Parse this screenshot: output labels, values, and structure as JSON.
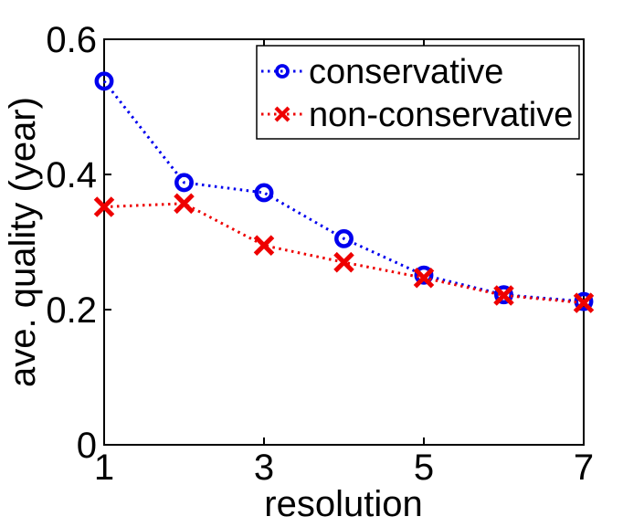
{
  "chart_data": {
    "type": "line",
    "title": "",
    "xlabel": "resolution",
    "ylabel": "ave. quality (year)",
    "xlim": [
      1,
      7
    ],
    "ylim": [
      0,
      0.6
    ],
    "grid": false,
    "background_color": "#ffffff",
    "axis_color": "#000000",
    "xticks": {
      "values": [
        1,
        3,
        5,
        7
      ],
      "labels": [
        "1",
        "3",
        "5",
        "7"
      ]
    },
    "yticks": {
      "values": [
        0,
        0.2,
        0.4,
        0.6
      ],
      "labels": [
        "0",
        "0.2",
        "0.4",
        "0.6"
      ]
    },
    "x": [
      1,
      2,
      3,
      4,
      5,
      6,
      7
    ],
    "series": [
      {
        "name": "conservative",
        "color": "#0000EE",
        "marker": "circle",
        "line_style": "dotted",
        "values": [
          0.538,
          0.388,
          0.373,
          0.305,
          0.251,
          0.222,
          0.212
        ]
      },
      {
        "name": "non-conservative",
        "color": "#EE0000",
        "marker": "x",
        "line_style": "dotted",
        "values": [
          0.352,
          0.357,
          0.295,
          0.27,
          0.247,
          0.221,
          0.21
        ]
      }
    ],
    "legend": {
      "position": "top-right-inside",
      "entries": [
        "conservative",
        "non-conservative"
      ]
    }
  }
}
